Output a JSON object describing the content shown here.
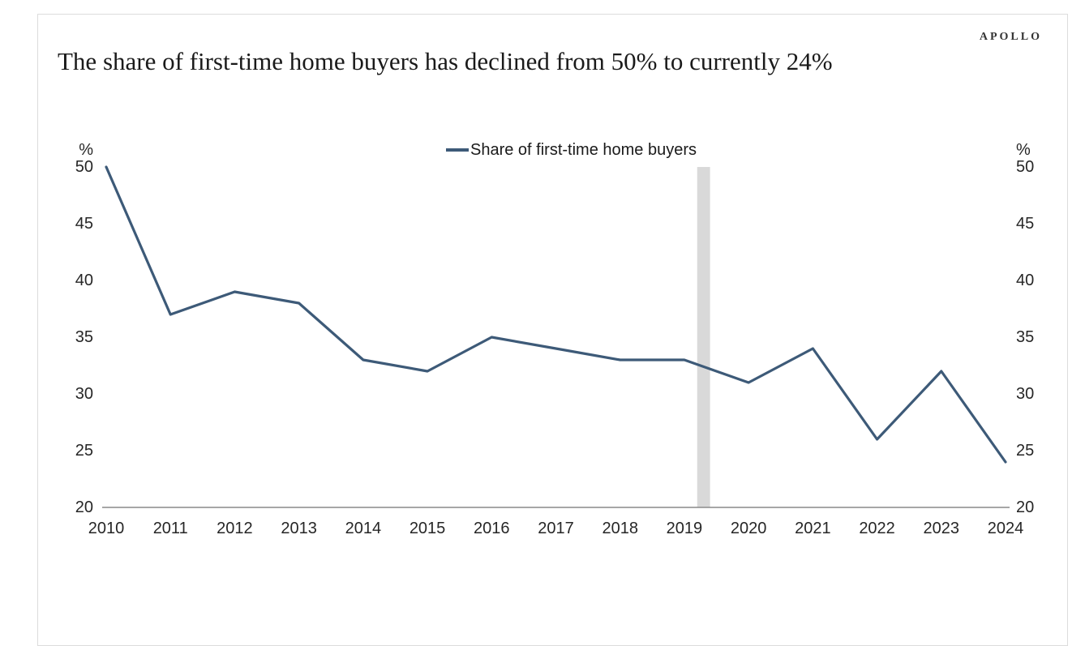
{
  "header": {
    "brand": "APOLLO",
    "title": "The share of first-time home buyers has declined from 50% to currently 24%"
  },
  "legend": {
    "label": "Share of first-time home buyers"
  },
  "axes": {
    "y_unit_left": "%",
    "y_unit_right": "%",
    "y_ticks": [
      "50",
      "45",
      "40",
      "35",
      "30",
      "25",
      "20"
    ],
    "x_ticks": [
      "2010",
      "2011",
      "2012",
      "2013",
      "2014",
      "2015",
      "2016",
      "2017",
      "2018",
      "2019",
      "2020",
      "2021",
      "2022",
      "2023",
      "2024"
    ]
  },
  "colors": {
    "line": "#3d5a78",
    "recession_band": "#d9d9d9",
    "axis_line": "#8a8a8a",
    "frame_border": "#dcdcdc",
    "text": "#262626"
  },
  "chart_data": {
    "type": "line",
    "title": "The share of first-time home buyers has declined from 50% to currently 24%",
    "x": [
      2010,
      2011,
      2012,
      2013,
      2014,
      2015,
      2016,
      2017,
      2018,
      2019,
      2020,
      2021,
      2022,
      2023,
      2024
    ],
    "series": [
      {
        "name": "Share of first-time home buyers",
        "values": [
          50,
          37,
          39,
          38,
          33,
          32,
          35,
          34,
          33,
          33,
          31,
          34,
          26,
          32,
          24
        ]
      }
    ],
    "xlabel": "",
    "ylabel": "%",
    "ylim": [
      20,
      50
    ],
    "y_tick_step": 5,
    "grid": false,
    "legend_position": "top-center",
    "dual_y_axis": true,
    "highlight_band_x": [
      2019.2,
      2019.4
    ]
  }
}
